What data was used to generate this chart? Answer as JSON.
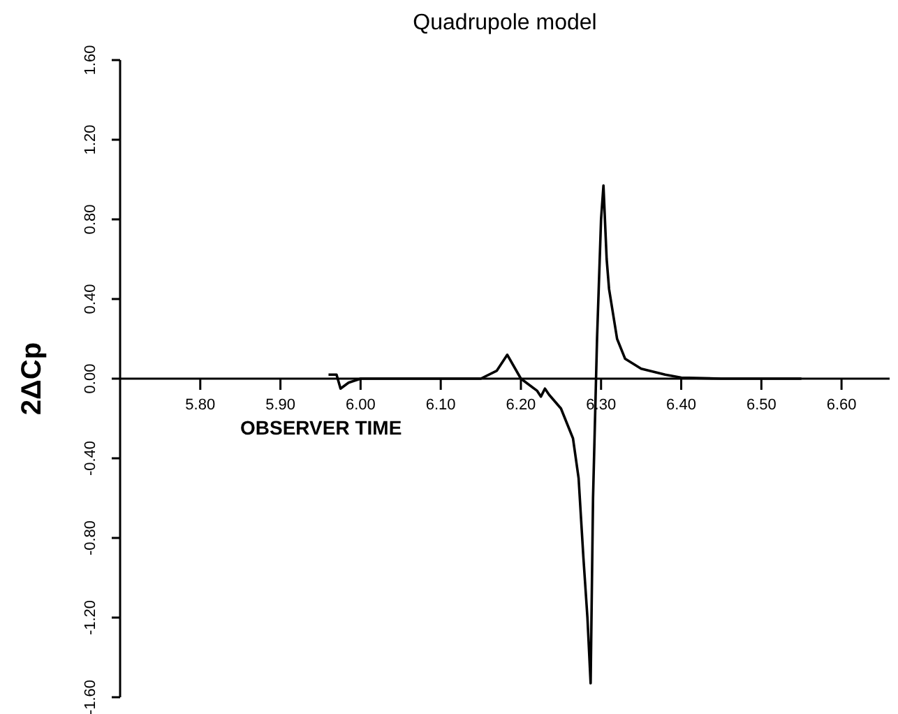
{
  "chart_data": {
    "type": "line",
    "title": "Quadrupole model",
    "xlabel": "OBSERVER TIME",
    "ylabel": "2ΔCp",
    "x": [
      5.96,
      5.97,
      5.975,
      5.985,
      6.0,
      6.1,
      6.15,
      6.17,
      6.183,
      6.2,
      6.22,
      6.225,
      6.23,
      6.235,
      6.25,
      6.265,
      6.272,
      6.278,
      6.283,
      6.287,
      6.29,
      6.295,
      6.3,
      6.303,
      6.307,
      6.31,
      6.32,
      6.33,
      6.35,
      6.38,
      6.4,
      6.45,
      6.55
    ],
    "series": [
      {
        "color": "#000000",
        "values": [
          0.02,
          0.02,
          -0.05,
          -0.02,
          0.0,
          0.0,
          0.0,
          0.04,
          0.12,
          0.0,
          -0.06,
          -0.09,
          -0.05,
          -0.08,
          -0.15,
          -0.3,
          -0.5,
          -0.9,
          -1.2,
          -1.53,
          -0.6,
          0.2,
          0.8,
          0.97,
          0.6,
          0.45,
          0.2,
          0.1,
          0.05,
          0.02,
          0.005,
          0.0,
          0.0
        ]
      }
    ],
    "xlim": [
      5.7,
      6.66
    ],
    "xticks": [
      {
        "value": 5.8,
        "label": "5.80"
      },
      {
        "value": 5.9,
        "label": "5.90"
      },
      {
        "value": 6.0,
        "label": "6.00"
      },
      {
        "value": 6.1,
        "label": "6.10"
      },
      {
        "value": 6.2,
        "label": "6.20"
      },
      {
        "value": 6.3,
        "label": "6.30"
      },
      {
        "value": 6.4,
        "label": "6.40"
      },
      {
        "value": 6.5,
        "label": "6.50"
      },
      {
        "value": 6.6,
        "label": "6.60"
      }
    ],
    "ylim": [
      -1.6,
      1.6
    ],
    "yticks": [
      {
        "value": -1.6,
        "label": "-1.60"
      },
      {
        "value": -1.2,
        "label": "-1.20"
      },
      {
        "value": -0.8,
        "label": "-0.80"
      },
      {
        "value": -0.4,
        "label": "-0.40"
      },
      {
        "value": 0,
        "label": "0.00"
      },
      {
        "value": 0.4,
        "label": "0.40"
      },
      {
        "value": 0.8,
        "label": "0.80"
      },
      {
        "value": 1.2,
        "label": "1.20"
      },
      {
        "value": 1.6,
        "label": "1.60"
      }
    ],
    "grid": false,
    "legend": false,
    "marker": "none",
    "line_style": "solid"
  }
}
